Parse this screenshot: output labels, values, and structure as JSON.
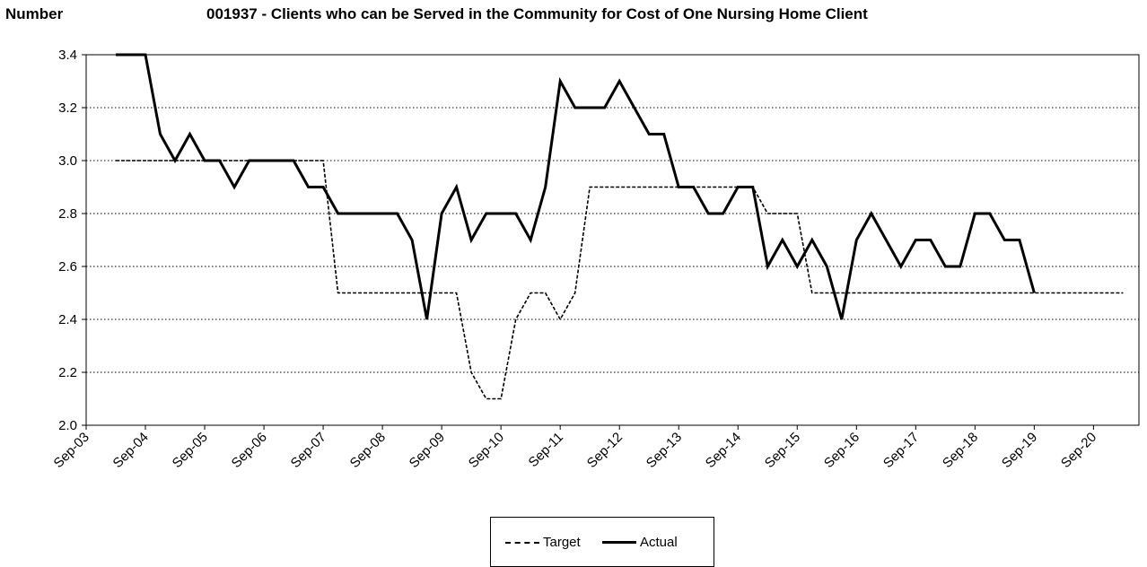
{
  "chart_data": {
    "type": "line",
    "title": "001937 - Clients who can be Served in the Community for Cost of One Nursing Home Client",
    "ylabel": "Number",
    "xlabel": "",
    "ylim": [
      2.0,
      3.4
    ],
    "yticks": [
      "2.0",
      "2.2",
      "2.4",
      "2.6",
      "2.8",
      "3.0",
      "3.2",
      "3.4"
    ],
    "xticks": [
      "Sep-03",
      "Sep-04",
      "Sep-05",
      "Sep-06",
      "Sep-07",
      "Sep-08",
      "Sep-09",
      "Sep-10",
      "Sep-11",
      "Sep-12",
      "Sep-13",
      "Sep-14",
      "Sep-15",
      "Sep-16",
      "Sep-17",
      "Sep-18",
      "Sep-19",
      "Sep-20"
    ],
    "grid": "horizontal-dotted",
    "legend_position": "bottom",
    "series": [
      {
        "name": "Target",
        "style": "dashed",
        "color": "#000000",
        "x": [
          "Mar-04",
          "Jun-04",
          "Sep-04",
          "Dec-04",
          "Mar-05",
          "Jun-05",
          "Sep-05",
          "Dec-05",
          "Mar-06",
          "Jun-06",
          "Sep-06",
          "Dec-06",
          "Mar-07",
          "Jun-07",
          "Sep-07",
          "Dec-07",
          "Mar-08",
          "Jun-08",
          "Sep-08",
          "Dec-08",
          "Mar-09",
          "Jun-09",
          "Sep-09",
          "Dec-09",
          "Mar-10",
          "Jun-10",
          "Sep-10",
          "Dec-10",
          "Mar-11",
          "Jun-11",
          "Sep-11",
          "Dec-11",
          "Mar-12",
          "Jun-12",
          "Sep-12",
          "Dec-12",
          "Mar-13",
          "Jun-13",
          "Sep-13",
          "Dec-13",
          "Mar-14",
          "Jun-14",
          "Sep-14",
          "Dec-14",
          "Mar-15",
          "Jun-15",
          "Sep-15",
          "Dec-15",
          "Mar-16",
          "Jun-16",
          "Sep-16",
          "Dec-16",
          "Mar-17",
          "Jun-17",
          "Sep-17",
          "Dec-17",
          "Mar-18",
          "Jun-18",
          "Sep-18",
          "Dec-18",
          "Mar-19",
          "Jun-19",
          "Sep-19",
          "Dec-19",
          "Mar-20",
          "Jun-20",
          "Sep-20",
          "Dec-20",
          "Mar-21"
        ],
        "values": [
          3.0,
          3.0,
          3.0,
          3.0,
          3.0,
          3.0,
          3.0,
          3.0,
          3.0,
          3.0,
          3.0,
          3.0,
          3.0,
          3.0,
          3.0,
          2.5,
          2.5,
          2.5,
          2.5,
          2.5,
          2.5,
          2.5,
          2.5,
          2.5,
          2.2,
          2.1,
          2.1,
          2.4,
          2.5,
          2.5,
          2.4,
          2.5,
          2.9,
          2.9,
          2.9,
          2.9,
          2.9,
          2.9,
          2.9,
          2.9,
          2.9,
          2.9,
          2.9,
          2.9,
          2.8,
          2.8,
          2.8,
          2.5,
          2.5,
          2.5,
          2.5,
          2.5,
          2.5,
          2.5,
          2.5,
          2.5,
          2.5,
          2.5,
          2.5,
          2.5,
          2.5,
          2.5,
          2.5,
          2.5,
          2.5,
          2.5,
          2.5,
          2.5,
          2.5
        ]
      },
      {
        "name": "Actual",
        "style": "solid",
        "color": "#000000",
        "x": [
          "Mar-04",
          "Jun-04",
          "Sep-04",
          "Dec-04",
          "Mar-05",
          "Jun-05",
          "Sep-05",
          "Dec-05",
          "Mar-06",
          "Jun-06",
          "Sep-06",
          "Dec-06",
          "Mar-07",
          "Jun-07",
          "Sep-07",
          "Dec-07",
          "Mar-08",
          "Jun-08",
          "Sep-08",
          "Dec-08",
          "Mar-09",
          "Jun-09",
          "Sep-09",
          "Dec-09",
          "Mar-10",
          "Jun-10",
          "Sep-10",
          "Dec-10",
          "Mar-11",
          "Jun-11",
          "Sep-11",
          "Dec-11",
          "Mar-12",
          "Jun-12",
          "Sep-12",
          "Dec-12",
          "Mar-13",
          "Jun-13",
          "Sep-13",
          "Dec-13",
          "Mar-14",
          "Jun-14",
          "Sep-14",
          "Dec-14",
          "Mar-15",
          "Jun-15",
          "Sep-15",
          "Dec-15",
          "Mar-16",
          "Jun-16",
          "Sep-16",
          "Dec-16",
          "Mar-17",
          "Jun-17",
          "Sep-17",
          "Dec-17",
          "Mar-18",
          "Jun-18",
          "Sep-18",
          "Dec-18",
          "Mar-19",
          "Jun-19",
          "Sep-19"
        ],
        "values": [
          3.4,
          3.4,
          3.4,
          3.1,
          3.0,
          3.1,
          3.0,
          3.0,
          2.9,
          3.0,
          3.0,
          3.0,
          3.0,
          2.9,
          2.9,
          2.8,
          2.8,
          2.8,
          2.8,
          2.8,
          2.7,
          2.4,
          2.8,
          2.9,
          2.7,
          2.8,
          2.8,
          2.8,
          2.7,
          2.9,
          3.3,
          3.2,
          3.2,
          3.2,
          3.3,
          3.2,
          3.1,
          3.1,
          2.9,
          2.9,
          2.8,
          2.8,
          2.9,
          2.9,
          2.6,
          2.7,
          2.6,
          2.7,
          2.6,
          2.4,
          2.7,
          2.8,
          2.7,
          2.6,
          2.7,
          2.7,
          2.6,
          2.6,
          2.8,
          2.8,
          2.7,
          2.7,
          2.5
        ]
      }
    ]
  }
}
